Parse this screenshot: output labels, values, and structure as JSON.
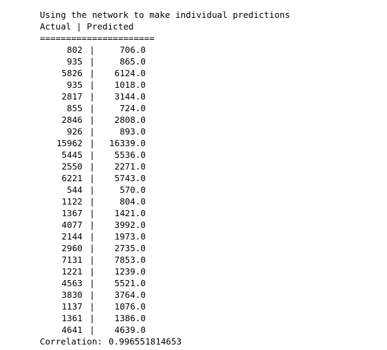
{
  "output": {
    "title": "Using the network to make individual predictions",
    "header": "Actual | Predicted",
    "divider": "======================",
    "rows": [
      {
        "actual": "802",
        "predicted": "706.0"
      },
      {
        "actual": "935",
        "predicted": "865.0"
      },
      {
        "actual": "5826",
        "predicted": "6124.0"
      },
      {
        "actual": "935",
        "predicted": "1018.0"
      },
      {
        "actual": "2817",
        "predicted": "3144.0"
      },
      {
        "actual": "855",
        "predicted": "724.0"
      },
      {
        "actual": "2846",
        "predicted": "2808.0"
      },
      {
        "actual": "926",
        "predicted": "893.0"
      },
      {
        "actual": "15962",
        "predicted": "16339.0"
      },
      {
        "actual": "5445",
        "predicted": "5536.0"
      },
      {
        "actual": "2550",
        "predicted": "2271.0"
      },
      {
        "actual": "6221",
        "predicted": "5743.0"
      },
      {
        "actual": "544",
        "predicted": "570.0"
      },
      {
        "actual": "1122",
        "predicted": "804.0"
      },
      {
        "actual": "1367",
        "predicted": "1421.0"
      },
      {
        "actual": "4077",
        "predicted": "3992.0"
      },
      {
        "actual": "2144",
        "predicted": "1973.0"
      },
      {
        "actual": "2960",
        "predicted": "2735.0"
      },
      {
        "actual": "7131",
        "predicted": "7853.0"
      },
      {
        "actual": "1221",
        "predicted": "1239.0"
      },
      {
        "actual": "4563",
        "predicted": "5521.0"
      },
      {
        "actual": "3830",
        "predicted": "3764.0"
      },
      {
        "actual": "1137",
        "predicted": "1076.0"
      },
      {
        "actual": "1361",
        "predicted": "1386.0"
      },
      {
        "actual": "4641",
        "predicted": "4639.0"
      }
    ],
    "separator": "|",
    "correlation_label": "Correlation:",
    "correlation_value": "0.996551814653"
  }
}
